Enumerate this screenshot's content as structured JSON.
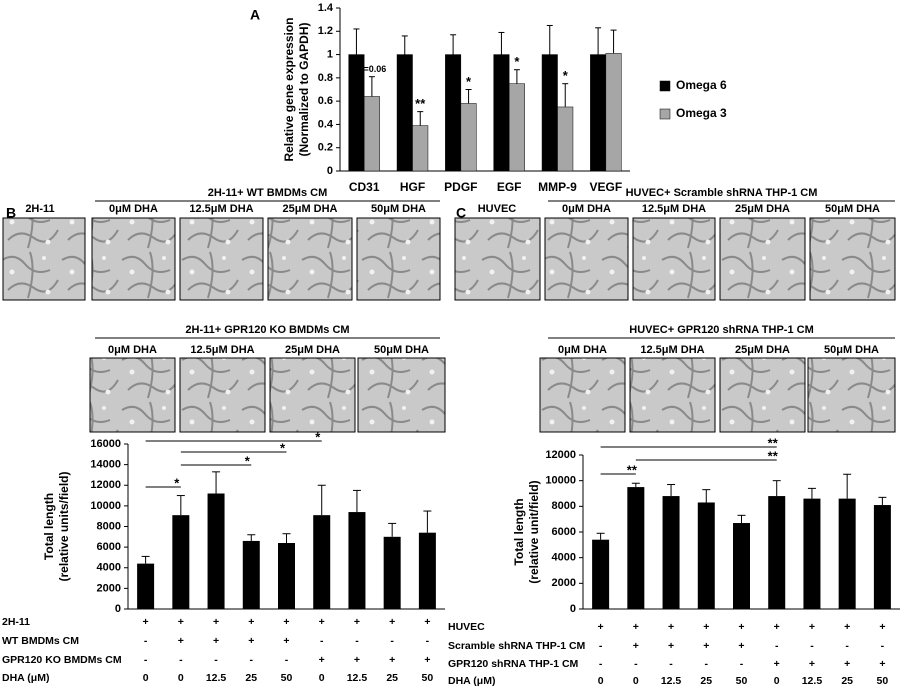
{
  "panels": {
    "A": "A",
    "B": "B",
    "C": "C"
  },
  "micrographs": [
    {
      "control": "2H-11",
      "rows": [
        {
          "header": "2H-11+ WT BMDMs CM",
          "labels": [
            "0μM DHA",
            "12.5μM DHA",
            "25μM DHA",
            "50μM DHA"
          ]
        },
        {
          "header": "2H-11+ GPR120 KO BMDMs CM",
          "labels": [
            "0μM DHA",
            "12.5μM DHA",
            "25μM DHA",
            "50μM DHA"
          ]
        }
      ]
    },
    {
      "control": "HUVEC",
      "rows": [
        {
          "header": "HUVEC+  Scramble shRNA THP-1 CM",
          "labels": [
            "0μM DHA",
            "12.5μM DHA",
            "25μM DHA",
            "50μM DHA"
          ]
        },
        {
          "header": "HUVEC+ GPR120 shRNA THP-1 CM",
          "labels": [
            "0μM DHA",
            "12.5μM DHA",
            "25μM DHA",
            "50μM DHA"
          ]
        }
      ]
    }
  ],
  "chart_data": [
    {
      "type": "grouped-bar",
      "ylabel": [
        "Relative gene expression",
        "(Normalized to GAPDH)"
      ],
      "categories": [
        "CD31",
        "HGF",
        "PDGF",
        "EGF",
        "MMP-9",
        "VEGF"
      ],
      "series": [
        {
          "name": "Omega 6",
          "color": "#000000",
          "values": [
            1,
            1,
            1,
            1,
            1,
            1
          ],
          "errors": [
            0.22,
            0.16,
            0.17,
            0.19,
            0.25,
            0.23
          ]
        },
        {
          "name": "Omega 3",
          "color": "#a6a6a6",
          "values": [
            0.64,
            0.39,
            0.58,
            0.75,
            0.55,
            1.01
          ],
          "errors": [
            0.17,
            0.12,
            0.12,
            0.12,
            0.2,
            0.2
          ],
          "significance": [
            "P=0.06",
            "**",
            "*",
            "*",
            "*",
            null
          ]
        }
      ],
      "ylim": [
        0,
        1.4
      ],
      "yticks": [
        0,
        0.2,
        0.4,
        0.6,
        0.8,
        1,
        1.2,
        1.4
      ],
      "legend": "right"
    },
    {
      "type": "bar",
      "ylabel": [
        "Total length",
        "(relative units/field)"
      ],
      "values": [
        4400,
        9100,
        11200,
        6600,
        6400,
        9100,
        9400,
        7000,
        7400
      ],
      "errors": [
        700,
        1900,
        2100,
        600,
        900,
        2900,
        2100,
        1300,
        2100
      ],
      "color": "#000000",
      "ylim": [
        0,
        16000
      ],
      "yticks": [
        0,
        2000,
        4000,
        6000,
        8000,
        10000,
        12000,
        14000,
        16000
      ],
      "significance": [
        "*",
        "*",
        "*",
        "*"
      ],
      "treatments": [
        {
          "name": "2H-11",
          "cells": [
            "+",
            "+",
            "+",
            "+",
            "+",
            "+",
            "+",
            "+",
            "+"
          ]
        },
        {
          "name": "WT BMDMs  CM",
          "cells": [
            "-",
            "+",
            "+",
            "+",
            "+",
            "-",
            "-",
            "-",
            "-"
          ]
        },
        {
          "name": "GPR120  KO BMDMs  CM",
          "cells": [
            "-",
            "-",
            "-",
            "-",
            "-",
            "+",
            "+",
            "+",
            "+"
          ]
        },
        {
          "name": "DHA (μM)",
          "cells": [
            "0",
            "0",
            "12.5",
            "25",
            "50",
            "0",
            "12.5",
            "25",
            "50"
          ]
        }
      ]
    },
    {
      "type": "bar",
      "ylabel": [
        "Total length",
        "(relative unit/field)"
      ],
      "values": [
        5400,
        9500,
        8800,
        8300,
        6700,
        8800,
        8600,
        8600,
        8100
      ],
      "errors": [
        500,
        300,
        900,
        1000,
        600,
        1200,
        800,
        1900,
        600
      ],
      "color": "#000000",
      "ylim": [
        0,
        12000
      ],
      "yticks": [
        0,
        2000,
        4000,
        6000,
        8000,
        10000,
        12000
      ],
      "significance": [
        "**",
        "**",
        "**"
      ],
      "treatments": [
        {
          "name": "HUVEC",
          "cells": [
            "+",
            "+",
            "+",
            "+",
            "+",
            "+",
            "+",
            "+",
            "+"
          ]
        },
        {
          "name": "Scramble shRNA THP-1 CM",
          "cells": [
            "-",
            "+",
            "+",
            "+",
            "+",
            "-",
            "-",
            "-",
            "-"
          ]
        },
        {
          "name": "GPR120 shRNA THP-1 CM",
          "cells": [
            "-",
            "-",
            "-",
            "-",
            "-",
            "+",
            "+",
            "+",
            "+"
          ]
        },
        {
          "name": "DHA (μM)",
          "cells": [
            "0",
            "0",
            "12.5",
            "25",
            "50",
            "0",
            "12.5",
            "25",
            "50"
          ]
        }
      ]
    }
  ]
}
